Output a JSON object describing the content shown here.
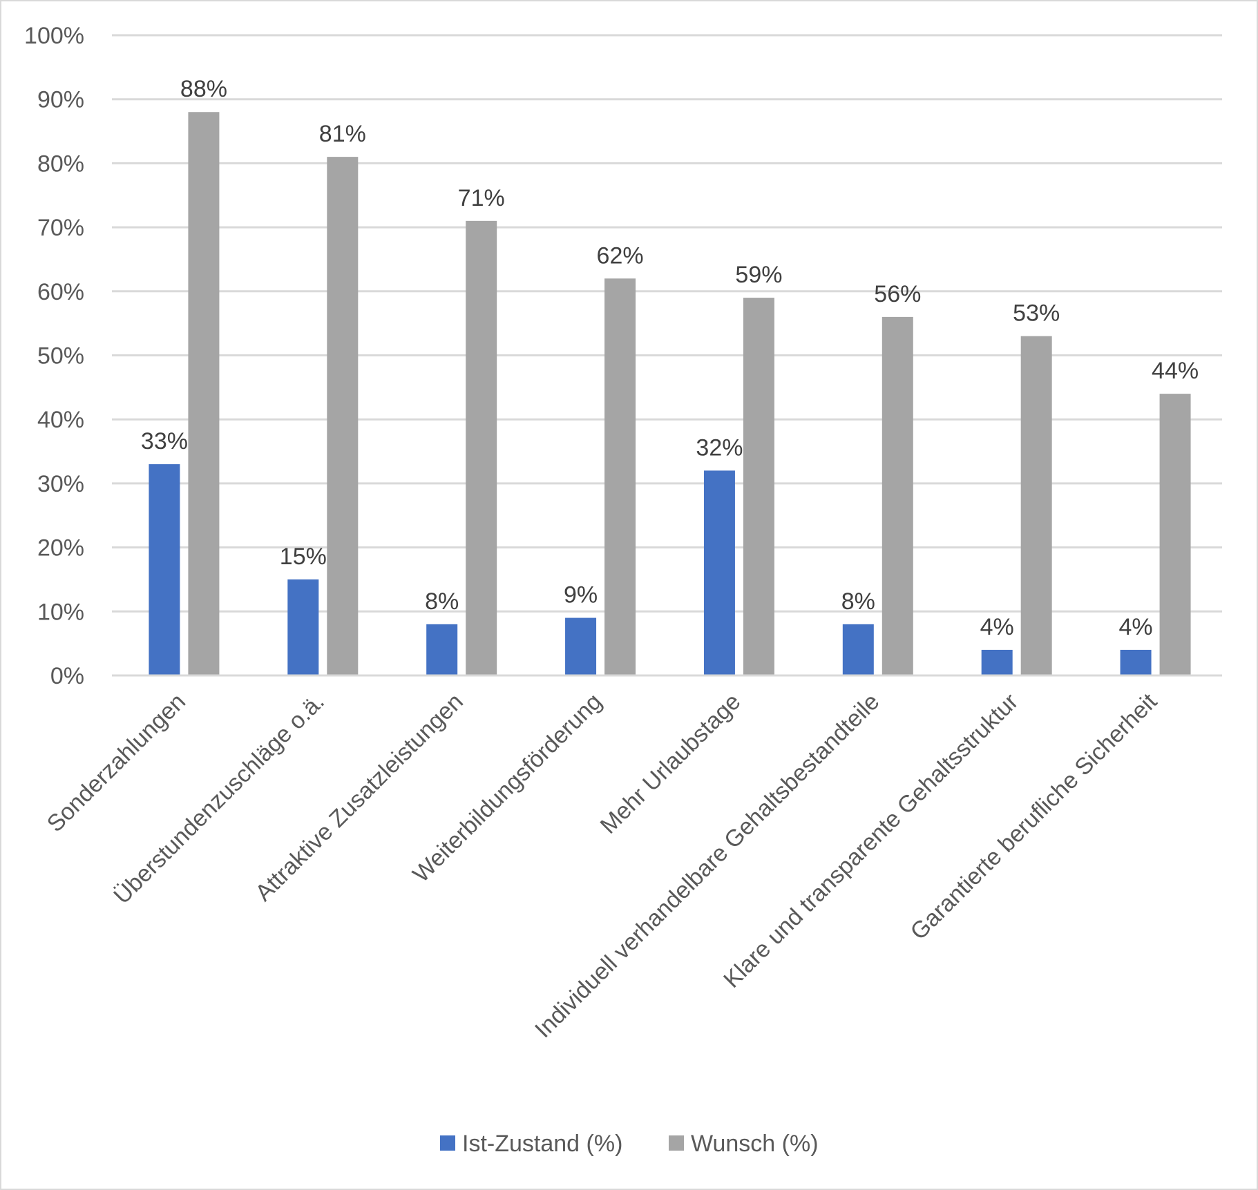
{
  "chart_data": {
    "type": "bar",
    "title": "",
    "xlabel": "",
    "ylabel": "",
    "ylim": [
      0,
      100
    ],
    "yticks": [
      "0%",
      "10%",
      "20%",
      "30%",
      "40%",
      "50%",
      "60%",
      "70%",
      "80%",
      "90%",
      "100%"
    ],
    "grid": true,
    "legend_position": "bottom",
    "categories": [
      "Sonderzahlungen",
      "Überstundenzuschläge o.ä.",
      "Attraktive Zusatzleistungen",
      "Weiterbildungsförderung",
      "Mehr Urlaubstage",
      "Individuell verhandelbare Gehaltsbestandteile",
      "Klare und transparente Gehaltsstruktur",
      "Garantierte berufliche Sicherheit"
    ],
    "series": [
      {
        "name": "Ist-Zustand (%)",
        "color": "#4472c4",
        "values": [
          33,
          15,
          8,
          9,
          32,
          8,
          4,
          4
        ],
        "labels": [
          "33%",
          "15%",
          "8%",
          "9%",
          "32%",
          "8%",
          "4%",
          "4%"
        ]
      },
      {
        "name": "Wunsch (%)",
        "color": "#a5a5a5",
        "values": [
          88,
          81,
          71,
          62,
          59,
          56,
          53,
          44
        ],
        "labels": [
          "88%",
          "81%",
          "71%",
          "62%",
          "59%",
          "56%",
          "53%",
          "44%"
        ]
      }
    ]
  }
}
